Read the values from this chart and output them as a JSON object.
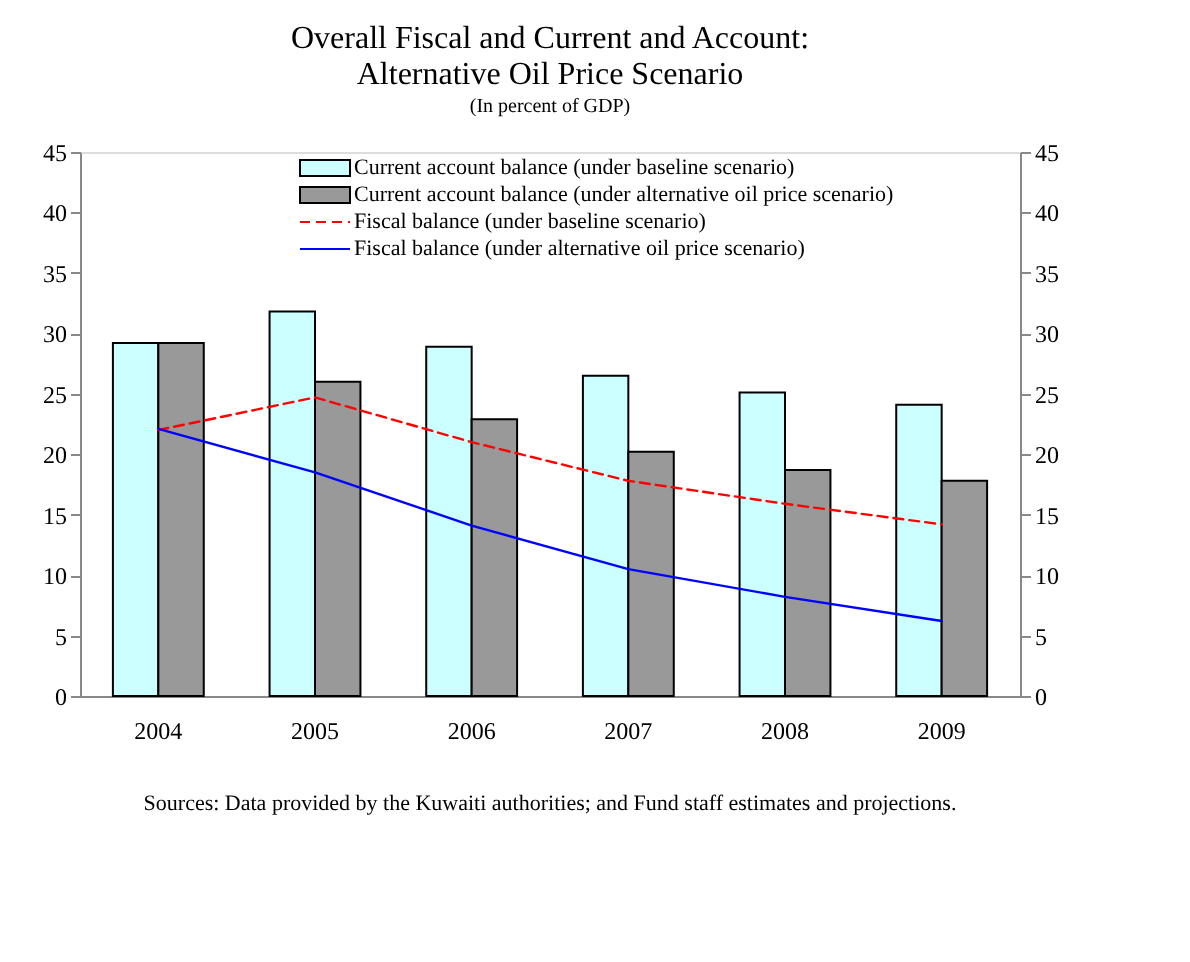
{
  "chart_data": {
    "type": "bar",
    "title": [
      "Overall Fiscal and Current and Account:",
      "Alternative Oil Price Scenario"
    ],
    "subtitle": "(In percent of GDP)",
    "categories": [
      "2004",
      "2005",
      "2006",
      "2007",
      "2008",
      "2009"
    ],
    "series": [
      {
        "name": "Current account balance (under baseline scenario)",
        "type": "bar",
        "color": "#ccffff",
        "values": [
          29.2,
          31.8,
          28.9,
          26.5,
          25.1,
          24.1
        ]
      },
      {
        "name": "Current account balance (under alternative oil price scenario)",
        "type": "bar",
        "color": "#999999",
        "values": [
          29.2,
          26.0,
          22.9,
          20.2,
          18.7,
          17.8
        ]
      },
      {
        "name": "Fiscal balance (under baseline scenario)",
        "type": "line",
        "color": "#ff0000",
        "line_style": "dashed",
        "values": [
          22.0,
          24.7,
          21.0,
          17.8,
          15.9,
          14.2
        ]
      },
      {
        "name": "Fiscal balance (under alternative oil price scenario)",
        "type": "line",
        "color": "#0000ff",
        "line_style": "solid",
        "values": [
          22.1,
          18.5,
          14.1,
          10.5,
          8.2,
          6.2
        ]
      }
    ],
    "ylim": [
      0,
      45
    ],
    "yticks": [
      0,
      5,
      10,
      15,
      20,
      25,
      30,
      35,
      40,
      45
    ],
    "y2lim": [
      0,
      45
    ],
    "y2ticks": [
      0,
      5,
      10,
      15,
      20,
      25,
      30,
      35,
      40,
      45
    ],
    "grid": false,
    "legend": "top",
    "marker": "none",
    "annotations": [
      "Sources: Data provided by the Kuwaiti authorities; and Fund staff estimates and projections."
    ]
  }
}
